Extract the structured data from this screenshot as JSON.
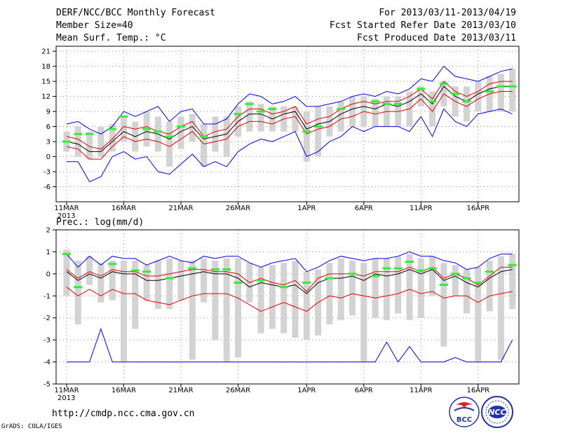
{
  "header": {
    "title": "DERF/NCC/BCC Monthly Forecast",
    "member_size": "Member Size=40",
    "variable": "Mean Surf. Temp.: °C",
    "forecast_period": "For 2013/03/11-2013/04/19",
    "start_date": "Fcst Started Refer Date 2013/03/10",
    "produced_date": "Fcst Produced Date 2013/03/11"
  },
  "footer": {
    "url": "http://cmdp.ncc.cma.gov.cn",
    "grads_credit": "GrADS: COLA/IGES",
    "logo_bcc": "BCC",
    "logo_ncc": "NCC"
  },
  "colors": {
    "bar": "#d3d3d3",
    "median": "#000000",
    "quartile": "#e00000",
    "extreme": "#0000dd",
    "observed": "#33ee33",
    "grid": "#888888"
  },
  "chart_data": [
    {
      "type": "line",
      "title": "Mean Surf. Temp.: °C",
      "x_tick_labels": [
        "11MAR",
        "16MAR",
        "21MAR",
        "26MAR",
        "1APR",
        "6APR",
        "11APR",
        "16APR"
      ],
      "x_tick_days": [
        1,
        6,
        11,
        16,
        22,
        27,
        32,
        37
      ],
      "year_label": "2013",
      "ylim": [
        -9,
        22
      ],
      "y_ticks": [
        -6,
        -3,
        0,
        3,
        6,
        9,
        12,
        15,
        18,
        21
      ],
      "days": [
        1,
        2,
        3,
        4,
        5,
        6,
        7,
        8,
        9,
        10,
        11,
        12,
        13,
        14,
        15,
        16,
        17,
        18,
        19,
        20,
        21,
        22,
        23,
        24,
        25,
        26,
        27,
        28,
        29,
        30,
        31,
        32,
        33,
        34,
        35,
        36,
        37,
        38,
        39,
        40
      ],
      "series": [
        {
          "name": "max",
          "color": "extreme",
          "values": [
            6.5,
            7,
            5.5,
            4.5,
            6,
            9,
            8,
            9,
            10,
            7,
            9,
            9.5,
            6.5,
            6.5,
            7.5,
            10.5,
            12.5,
            12,
            10.5,
            11,
            12,
            10,
            10,
            10.5,
            11,
            12,
            12.5,
            12,
            13,
            12.5,
            13.5,
            15.5,
            15,
            18,
            16,
            15.5,
            15,
            16,
            17,
            17.5
          ]
        },
        {
          "name": "upper_quartile",
          "color": "quartile",
          "values": [
            4,
            3.5,
            2,
            1.5,
            3.5,
            6,
            5.5,
            6,
            5,
            4.5,
            6,
            7,
            4,
            5,
            5.5,
            8,
            9.5,
            9.5,
            8.5,
            9,
            10,
            6.5,
            7.5,
            8,
            9.5,
            10.5,
            11,
            10.5,
            11,
            11,
            12,
            13.5,
            11.5,
            15,
            13,
            12,
            13,
            14.5,
            15,
            15
          ]
        },
        {
          "name": "median",
          "color": "median",
          "values": [
            3,
            2.5,
            1,
            1,
            3,
            5,
            4,
            5,
            4.5,
            3.5,
            5,
            6,
            3.5,
            4,
            4.5,
            7,
            8.5,
            8.5,
            7.5,
            8.5,
            9,
            5.5,
            6.5,
            7,
            8.5,
            9.5,
            10,
            9.5,
            10.5,
            10,
            11,
            12.5,
            10.5,
            14,
            12,
            11,
            12.5,
            13.5,
            14,
            14
          ]
        },
        {
          "name": "lower_quartile",
          "color": "quartile",
          "values": [
            2,
            1.5,
            -0.5,
            -0.5,
            2,
            4,
            3,
            3.5,
            3,
            2,
            3.5,
            5,
            2.5,
            3,
            3.5,
            6,
            7,
            7,
            6.5,
            7.5,
            8,
            4.5,
            5.5,
            6,
            7.5,
            8,
            9,
            8.5,
            9,
            9,
            9.5,
            11.5,
            9,
            12.5,
            11,
            10,
            11.5,
            12.5,
            13,
            13
          ]
        },
        {
          "name": "min",
          "color": "extreme",
          "values": [
            -1,
            -1,
            -5,
            -4,
            0,
            1,
            -0.5,
            0,
            -3,
            -3.5,
            -1.5,
            0.5,
            -2,
            -1,
            -2,
            1,
            2.5,
            3.5,
            3,
            4,
            5,
            0,
            1,
            3,
            4,
            6,
            5,
            6,
            6,
            6,
            5,
            8,
            4,
            9.5,
            7,
            6,
            8.5,
            9,
            9.5,
            8.5
          ]
        }
      ],
      "ensemble_range": {
        "low": [
          1,
          0,
          -0.5,
          0,
          1,
          3,
          1,
          2,
          1,
          -2,
          1.5,
          3,
          -2,
          1,
          0,
          4,
          5,
          5,
          5,
          5,
          5,
          -1,
          0,
          4,
          5,
          6,
          6,
          6,
          6,
          6,
          6,
          10,
          6,
          10,
          8,
          7,
          9,
          9,
          9,
          9
        ],
        "high": [
          5,
          6,
          5,
          6,
          6.5,
          8,
          7,
          9,
          8,
          7,
          8,
          8.5,
          6.5,
          8,
          8,
          10,
          11,
          10.5,
          10,
          10,
          10,
          9,
          10,
          10,
          11,
          12,
          12,
          11.5,
          12,
          12,
          13,
          14,
          13,
          15,
          14,
          14,
          15,
          16,
          16.5,
          17.5
        ]
      },
      "observed_days": [
        1,
        2,
        3,
        5,
        6,
        8,
        9,
        10,
        11,
        13,
        16,
        17,
        18,
        19,
        22,
        23,
        25,
        28,
        29,
        30,
        32,
        33,
        34,
        35,
        36,
        38,
        39,
        40
      ],
      "observed_values": [
        3,
        4.5,
        4.5,
        5.5,
        8,
        5.5,
        5,
        4,
        6,
        4,
        8.5,
        10.5,
        9,
        9.5,
        5,
        6,
        9.5,
        11,
        10.5,
        10.5,
        13.5,
        11,
        14.5,
        12.5,
        11,
        13,
        14,
        14
      ]
    },
    {
      "type": "line",
      "title": "Prec.: log(mm/d)",
      "x_tick_labels": [
        "11MAR",
        "16MAR",
        "21MAR",
        "26MAR",
        "1APR",
        "6APR",
        "11APR",
        "16APR"
      ],
      "x_tick_days": [
        1,
        6,
        11,
        16,
        22,
        27,
        32,
        37
      ],
      "year_label": "2013",
      "ylim": [
        -5,
        2
      ],
      "y_ticks": [
        -5,
        -4,
        -3,
        -2,
        -1,
        0,
        1,
        2
      ],
      "days": [
        1,
        2,
        3,
        4,
        5,
        6,
        7,
        8,
        9,
        10,
        11,
        12,
        13,
        14,
        15,
        16,
        17,
        18,
        19,
        20,
        21,
        22,
        23,
        24,
        25,
        26,
        27,
        28,
        29,
        30,
        31,
        32,
        33,
        34,
        35,
        36,
        37,
        38,
        39,
        40
      ],
      "series": [
        {
          "name": "max",
          "color": "extreme",
          "values": [
            0.9,
            0.3,
            0.8,
            0.4,
            0.8,
            0.7,
            0.7,
            0.4,
            0.6,
            0.8,
            0.6,
            0.5,
            0.8,
            0.7,
            0.8,
            0.8,
            0.5,
            0.3,
            0.5,
            0.6,
            0.7,
            0.1,
            0.3,
            0.6,
            0.8,
            0.7,
            0.6,
            0.7,
            0.7,
            0.8,
            1.0,
            0.8,
            0.8,
            0.6,
            0.5,
            0.2,
            0.3,
            0.7,
            0.9,
            0.9
          ]
        },
        {
          "name": "upper_quartile",
          "color": "quartile",
          "values": [
            0.2,
            -0.2,
            0.1,
            -0.1,
            0.2,
            0.1,
            0.1,
            -0.1,
            -0.1,
            0,
            0.1,
            0.2,
            0.2,
            0.1,
            0.1,
            0,
            -0.4,
            -0.2,
            -0.4,
            -0.5,
            -0.3,
            -0.8,
            -0.2,
            0,
            0,
            0,
            -0.1,
            0.1,
            0.1,
            0.1,
            0.3,
            0.1,
            0.3,
            -0.2,
            0,
            -0.2,
            -0.5,
            -0.1,
            0.3,
            0.3
          ]
        },
        {
          "name": "median",
          "color": "median",
          "values": [
            0.1,
            -0.3,
            0,
            -0.2,
            0.1,
            0,
            0,
            -0.3,
            -0.3,
            -0.2,
            -0.1,
            0,
            0.1,
            0,
            0,
            -0.2,
            -0.6,
            -0.4,
            -0.5,
            -0.6,
            -0.5,
            -0.9,
            -0.4,
            -0.2,
            -0.2,
            -0.1,
            -0.3,
            0,
            -0.1,
            0,
            0.2,
            0,
            0.2,
            -0.3,
            -0.1,
            -0.4,
            -0.6,
            -0.2,
            0.1,
            0.2
          ]
        },
        {
          "name": "lower_quartile",
          "color": "quartile",
          "values": [
            -0.6,
            -1,
            -0.7,
            -1,
            -0.7,
            -0.9,
            -0.9,
            -1.2,
            -1.3,
            -1.4,
            -1.2,
            -1,
            -0.9,
            -0.9,
            -0.9,
            -1.1,
            -1.4,
            -1.7,
            -1.5,
            -1.3,
            -1.5,
            -1.7,
            -1.3,
            -1,
            -1.1,
            -0.9,
            -1,
            -1.1,
            -1,
            -0.9,
            -0.7,
            -0.9,
            -0.8,
            -1.1,
            -1.0,
            -1.0,
            -1.3,
            -1.0,
            -0.9,
            -0.8
          ]
        },
        {
          "name": "min",
          "color": "extreme",
          "values": [
            -4,
            -4,
            -4,
            -2.5,
            -4,
            -4,
            -4,
            -4,
            -4,
            -4,
            -4,
            -4,
            -4,
            -4,
            -4,
            -4,
            -4,
            -4,
            -4,
            -4,
            -4,
            -4,
            -4,
            -4,
            -4,
            -4,
            -4,
            -4,
            -3.1,
            -4,
            -3.3,
            -4,
            -4,
            -4,
            -3.8,
            -4,
            -4,
            -4,
            -4,
            -3
          ]
        }
      ],
      "ensemble_range": {
        "low": [
          -1,
          -2.3,
          -0.5,
          -1.3,
          -1.2,
          -4,
          -2.5,
          -1.2,
          -1.6,
          -1.6,
          -1.2,
          -3.9,
          -1.3,
          -3,
          -4,
          -3.8,
          -1.3,
          -2.7,
          -2.5,
          -2.7,
          -2.9,
          -3.0,
          -2.8,
          -2.3,
          -2.1,
          -1.9,
          -4,
          -2,
          -2.1,
          -1.8,
          -2.1,
          -2.0,
          -1.0,
          -3.3,
          -1.0,
          -1.8,
          -4,
          -1.7,
          -3.9,
          -1.6
        ],
        "high": [
          1.1,
          0.6,
          0.8,
          0.5,
          0.6,
          0.6,
          0.6,
          0.4,
          0.6,
          0.7,
          0.6,
          0.6,
          0.7,
          0.6,
          0.7,
          0.7,
          0.5,
          0.3,
          0.4,
          0.5,
          0.6,
          0.1,
          0.2,
          0.5,
          0.7,
          0.6,
          0.5,
          0.7,
          0.7,
          0.8,
          0.9,
          0.7,
          0.8,
          0.5,
          0.4,
          0.2,
          0.3,
          0.6,
          0.8,
          0.9
        ]
      },
      "observed_days": [
        1,
        2,
        5,
        7,
        8,
        10,
        12,
        14,
        15,
        16,
        18,
        20,
        22,
        24,
        26,
        28,
        29,
        30,
        31,
        32,
        33,
        34,
        35,
        36,
        37,
        38,
        40
      ],
      "observed_values": [
        0.9,
        -0.6,
        0.45,
        0.15,
        0.1,
        -0.2,
        0.25,
        0.2,
        0.2,
        -0.4,
        -0.3,
        -0.6,
        -0.4,
        -0.2,
        0,
        -0.1,
        0.25,
        0.25,
        0.55,
        0.15,
        0.25,
        -0.5,
        0,
        -0.2,
        -0.4,
        0.1,
        0.4
      ]
    }
  ]
}
